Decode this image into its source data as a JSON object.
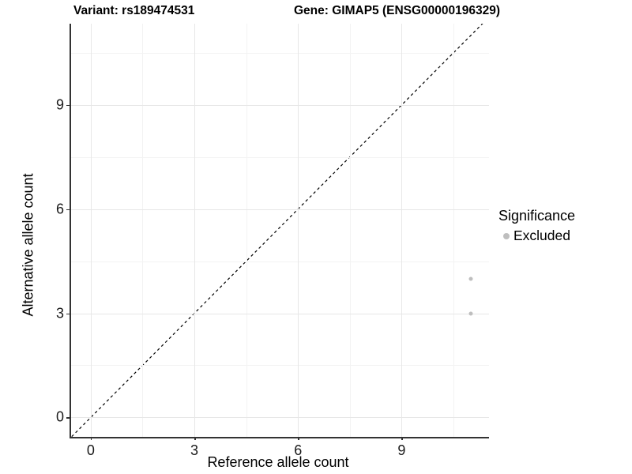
{
  "titles": {
    "variant": "Variant: rs189474531",
    "gene": "Gene: GIMAP5 (ENSG00000196329)"
  },
  "chart_data": {
    "type": "scatter",
    "title_left": "Variant: rs189474531",
    "title_right": "Gene: GIMAP5 (ENSG00000196329)",
    "xlabel": "Reference allele count",
    "ylabel": "Alternative allele count",
    "xlim": [
      -0.57,
      11.53
    ],
    "ylim": [
      -0.56,
      11.34
    ],
    "xticks": [
      0,
      3,
      6,
      9
    ],
    "yticks": [
      0,
      3,
      6,
      9
    ],
    "x_minor_gridlines": [
      1.5,
      4.5,
      7.5,
      10.5
    ],
    "y_minor_gridlines": [
      1.5,
      4.5,
      7.5,
      10.5
    ],
    "grid": true,
    "identity_line": {
      "slope": 1,
      "intercept": 0,
      "style": "dashed",
      "color": "#000000"
    },
    "series": [
      {
        "name": "Excluded",
        "color": "#bebebe",
        "point_radius": 2.5,
        "points": [
          {
            "x": 11,
            "y": 4
          },
          {
            "x": 11,
            "y": 3
          }
        ]
      }
    ],
    "legend": {
      "title": "Significance",
      "position": "right",
      "items": [
        {
          "label": "Excluded",
          "color": "#bebebe"
        }
      ]
    }
  },
  "colors": {
    "axis_line": "#333333",
    "grid_major": "#e7e7e7",
    "grid_minor": "#f3f3f3",
    "point": "#bebebe",
    "identity_line": "#000000",
    "background": "#ffffff"
  }
}
